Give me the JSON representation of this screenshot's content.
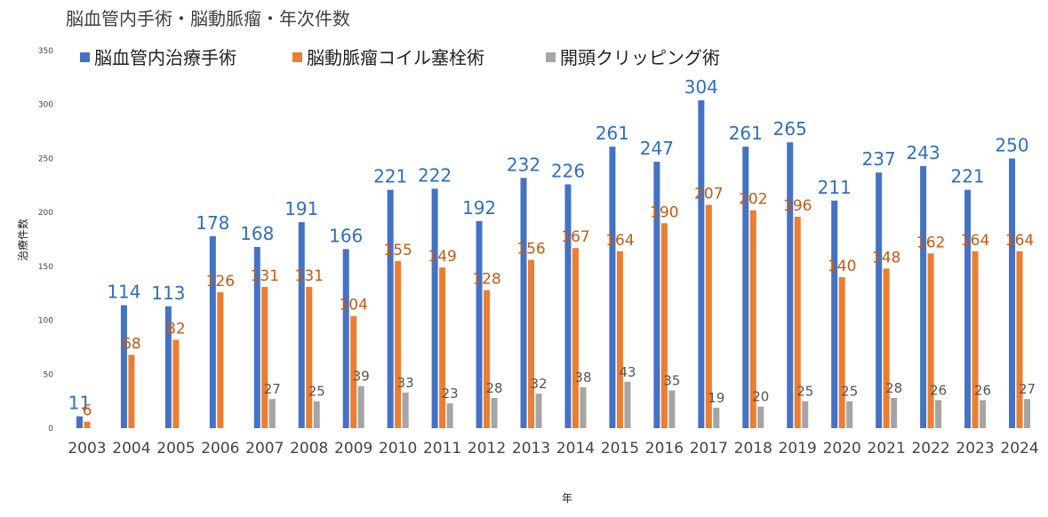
{
  "chart_data": {
    "type": "bar",
    "title": "脳血管内手術・脳動脈瘤・年次件数",
    "xlabel": "年",
    "ylabel": "治療件数",
    "ylim": [
      0,
      350
    ],
    "yticks": [
      0,
      50,
      100,
      150,
      200,
      250,
      300,
      350
    ],
    "grid": false,
    "legend_position": "top-left",
    "categories": [
      "2003",
      "2004",
      "2005",
      "2006",
      "2007",
      "2008",
      "2009",
      "2010",
      "2011",
      "2012",
      "2013",
      "2014",
      "2015",
      "2016",
      "2017",
      "2018",
      "2019",
      "2020",
      "2021",
      "2022",
      "2023",
      "2024"
    ],
    "series": [
      {
        "name": "脳血管内治療手術",
        "color": "#4472c4",
        "values": [
          11,
          114,
          113,
          178,
          168,
          191,
          166,
          221,
          222,
          192,
          232,
          226,
          261,
          247,
          304,
          261,
          265,
          211,
          237,
          243,
          221,
          250
        ]
      },
      {
        "name": "脳動脈瘤コイル塞栓術",
        "color": "#ed7d31",
        "values": [
          6,
          68,
          82,
          126,
          131,
          131,
          104,
          155,
          149,
          128,
          156,
          167,
          164,
          190,
          207,
          202,
          196,
          140,
          148,
          162,
          164,
          164
        ]
      },
      {
        "name": "開頭クリッピング術",
        "color": "#a5a5a5",
        "values": [
          null,
          null,
          null,
          null,
          27,
          25,
          39,
          33,
          23,
          28,
          32,
          38,
          43,
          35,
          19,
          20,
          25,
          25,
          28,
          26,
          26,
          27
        ]
      }
    ]
  }
}
